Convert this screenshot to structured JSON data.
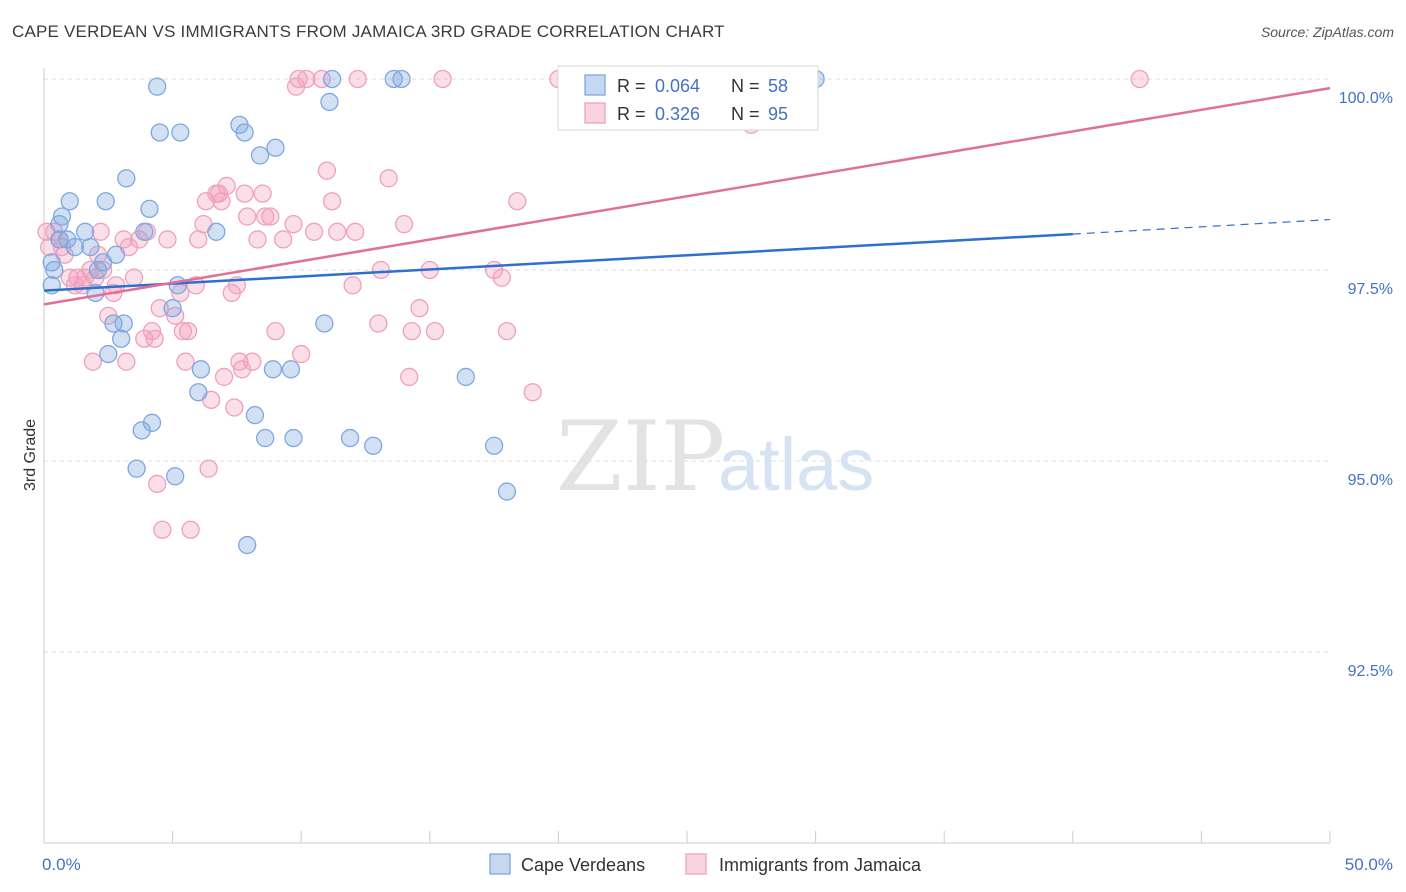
{
  "title": "CAPE VERDEAN VS IMMIGRANTS FROM JAMAICA 3RD GRADE CORRELATION CHART",
  "source": "Source: ZipAtlas.com",
  "watermark": {
    "zip": "ZIP",
    "atlas": "atlas"
  },
  "chart_data": {
    "type": "scatter",
    "xlabel": "",
    "ylabel": "3rd Grade",
    "xlim": [
      0,
      50
    ],
    "ylim": [
      90.0,
      100.4
    ],
    "x_tick_labels": [
      "0.0%",
      "50.0%"
    ],
    "y_ticks": [
      {
        "value": 100.0,
        "label": "100.0%"
      },
      {
        "value": 97.5,
        "label": "97.5%"
      },
      {
        "value": 95.0,
        "label": "95.0%"
      },
      {
        "value": 92.5,
        "label": "92.5%"
      }
    ],
    "grid": true,
    "legend_top": [
      {
        "r_label": "R =",
        "r_value": "0.064",
        "n_label": "N =",
        "n_value": "58",
        "color": "#7fa7e0"
      },
      {
        "r_label": "R =",
        "r_value": "0.326",
        "n_label": "N =",
        "n_value": "95",
        "color": "#f0a0bc"
      }
    ],
    "series": [
      {
        "name": "Cape Verdeans",
        "color": "#7fa7e0",
        "line_color": "#2f6fce",
        "trend": {
          "x0": 0,
          "y0": 97.23,
          "x1": 40,
          "y1": 97.97,
          "x_dash_end": 50,
          "y_dash_end": 98.16
        },
        "points": [
          [
            0.3,
            97.3
          ],
          [
            0.3,
            97.6
          ],
          [
            0.4,
            97.5
          ],
          [
            0.6,
            97.9
          ],
          [
            0.6,
            98.1
          ],
          [
            0.7,
            98.2
          ],
          [
            0.9,
            97.9
          ],
          [
            1.0,
            98.4
          ],
          [
            1.2,
            97.8
          ],
          [
            1.6,
            98.0
          ],
          [
            1.8,
            97.8
          ],
          [
            2.0,
            97.2
          ],
          [
            2.1,
            97.5
          ],
          [
            2.3,
            97.6
          ],
          [
            2.4,
            98.4
          ],
          [
            2.5,
            96.4
          ],
          [
            2.7,
            96.8
          ],
          [
            2.8,
            97.7
          ],
          [
            3.0,
            96.6
          ],
          [
            3.1,
            96.8
          ],
          [
            3.2,
            98.7
          ],
          [
            3.6,
            94.9
          ],
          [
            3.8,
            95.4
          ],
          [
            3.9,
            98.0
          ],
          [
            4.1,
            98.3
          ],
          [
            4.2,
            95.5
          ],
          [
            4.4,
            99.9
          ],
          [
            4.5,
            99.3
          ],
          [
            5.0,
            97.0
          ],
          [
            5.1,
            94.8
          ],
          [
            5.2,
            97.3
          ],
          [
            5.3,
            99.3
          ],
          [
            6.1,
            96.2
          ],
          [
            6.0,
            95.9
          ],
          [
            6.7,
            98.0
          ],
          [
            7.6,
            99.4
          ],
          [
            7.8,
            99.3
          ],
          [
            7.9,
            93.9
          ],
          [
            8.2,
            95.6
          ],
          [
            8.4,
            99.0
          ],
          [
            8.6,
            95.3
          ],
          [
            8.9,
            96.2
          ],
          [
            9.0,
            99.1
          ],
          [
            9.6,
            96.2
          ],
          [
            9.7,
            95.3
          ],
          [
            10.9,
            96.8
          ],
          [
            11.1,
            99.7
          ],
          [
            11.2,
            100.0
          ],
          [
            11.9,
            95.3
          ],
          [
            12.8,
            95.2
          ],
          [
            13.6,
            100.0
          ],
          [
            13.9,
            100.0
          ],
          [
            16.4,
            96.1
          ],
          [
            17.5,
            95.2
          ],
          [
            18.0,
            94.6
          ],
          [
            22.1,
            100.0
          ],
          [
            25.5,
            100.0
          ],
          [
            30.0,
            100.0
          ]
        ]
      },
      {
        "name": "Immigrants from Jamaica",
        "color": "#f0a0bc",
        "line_color": "#e0709a",
        "trend": {
          "x0": 0,
          "y0": 97.05,
          "x1": 50,
          "y1": 99.88
        },
        "points": [
          [
            0.1,
            98.0
          ],
          [
            0.2,
            97.8
          ],
          [
            0.4,
            98.0
          ],
          [
            0.6,
            97.9
          ],
          [
            0.7,
            97.8
          ],
          [
            0.8,
            97.7
          ],
          [
            1.0,
            97.4
          ],
          [
            1.2,
            97.3
          ],
          [
            1.3,
            97.4
          ],
          [
            1.5,
            97.3
          ],
          [
            1.6,
            97.4
          ],
          [
            1.8,
            97.5
          ],
          [
            1.9,
            96.3
          ],
          [
            2.0,
            97.4
          ],
          [
            2.1,
            97.7
          ],
          [
            2.2,
            98.0
          ],
          [
            2.3,
            97.5
          ],
          [
            2.5,
            96.9
          ],
          [
            2.7,
            97.2
          ],
          [
            2.8,
            97.3
          ],
          [
            3.1,
            97.9
          ],
          [
            3.2,
            96.3
          ],
          [
            3.3,
            97.8
          ],
          [
            3.5,
            97.4
          ],
          [
            3.7,
            97.9
          ],
          [
            3.9,
            96.6
          ],
          [
            4.0,
            98.0
          ],
          [
            4.2,
            96.7
          ],
          [
            4.3,
            96.6
          ],
          [
            4.4,
            94.7
          ],
          [
            4.5,
            97.0
          ],
          [
            4.6,
            94.1
          ],
          [
            4.8,
            97.9
          ],
          [
            5.1,
            96.9
          ],
          [
            5.3,
            97.2
          ],
          [
            5.4,
            96.7
          ],
          [
            5.5,
            96.3
          ],
          [
            5.6,
            96.7
          ],
          [
            5.7,
            94.1
          ],
          [
            5.9,
            97.3
          ],
          [
            6.0,
            97.9
          ],
          [
            6.2,
            98.1
          ],
          [
            6.3,
            98.4
          ],
          [
            6.4,
            94.9
          ],
          [
            6.5,
            95.8
          ],
          [
            6.7,
            98.5
          ],
          [
            6.8,
            98.5
          ],
          [
            6.9,
            98.4
          ],
          [
            7.0,
            96.1
          ],
          [
            7.1,
            98.6
          ],
          [
            7.3,
            97.2
          ],
          [
            7.4,
            95.7
          ],
          [
            7.5,
            97.3
          ],
          [
            7.6,
            96.3
          ],
          [
            7.7,
            96.2
          ],
          [
            7.8,
            98.5
          ],
          [
            7.9,
            98.2
          ],
          [
            8.1,
            96.3
          ],
          [
            8.3,
            97.9
          ],
          [
            8.5,
            98.5
          ],
          [
            8.6,
            98.2
          ],
          [
            8.8,
            98.2
          ],
          [
            9.0,
            96.7
          ],
          [
            9.3,
            97.9
          ],
          [
            9.7,
            98.1
          ],
          [
            9.8,
            99.9
          ],
          [
            9.9,
            100.0
          ],
          [
            10.0,
            96.4
          ],
          [
            10.2,
            100.0
          ],
          [
            10.5,
            98.0
          ],
          [
            10.8,
            100.0
          ],
          [
            11.0,
            98.8
          ],
          [
            11.2,
            98.4
          ],
          [
            11.4,
            98.0
          ],
          [
            12.0,
            97.3
          ],
          [
            12.1,
            98.0
          ],
          [
            12.2,
            100.0
          ],
          [
            13.0,
            96.8
          ],
          [
            13.1,
            97.5
          ],
          [
            13.4,
            98.7
          ],
          [
            14.0,
            98.1
          ],
          [
            14.2,
            96.1
          ],
          [
            14.3,
            96.7
          ],
          [
            14.6,
            97.0
          ],
          [
            15.0,
            97.5
          ],
          [
            15.2,
            96.7
          ],
          [
            15.5,
            100.0
          ],
          [
            17.5,
            97.5
          ],
          [
            17.8,
            97.4
          ],
          [
            18.0,
            96.7
          ],
          [
            18.4,
            98.4
          ],
          [
            19.0,
            95.9
          ],
          [
            20.0,
            100.0
          ],
          [
            27.5,
            99.4
          ],
          [
            42.6,
            100.0
          ]
        ]
      }
    ]
  }
}
